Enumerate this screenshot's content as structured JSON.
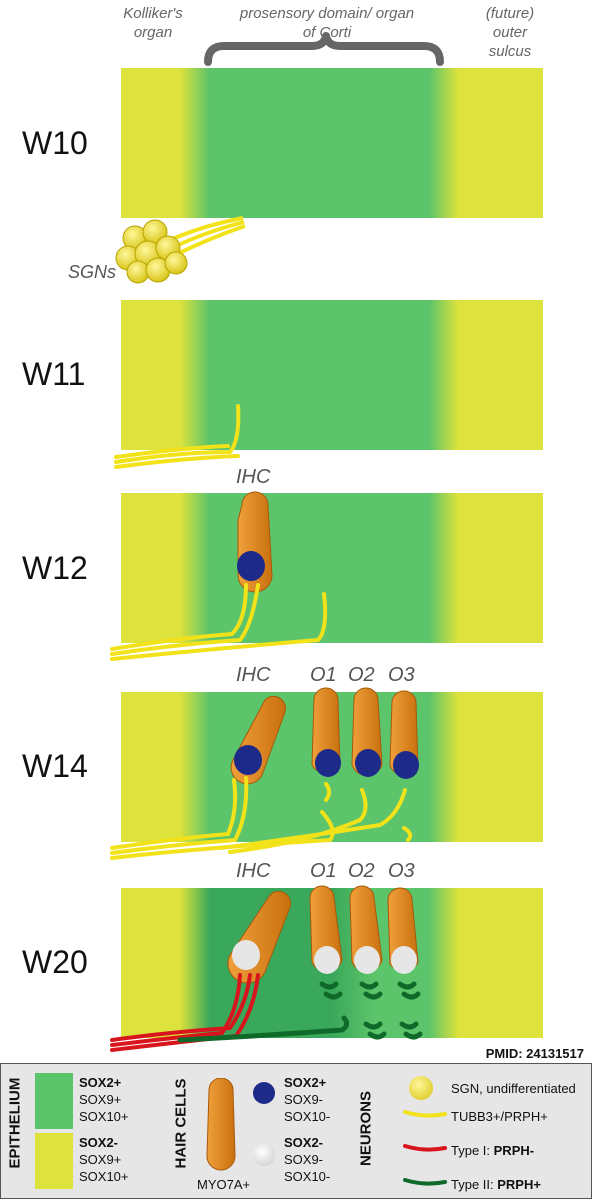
{
  "header": {
    "kolliker": "Kolliker's organ",
    "prosensory": "prosensory domain/ organ of Corti",
    "outer_sulcus": "(future) outer sulcus"
  },
  "weeks": [
    "W10",
    "W11",
    "W12",
    "W14",
    "W20"
  ],
  "labels": {
    "sgns": "SGNs",
    "ihc": "IHC",
    "o1": "O1",
    "o2": "O2",
    "o3": "O3"
  },
  "pmid": "PMID: 24131517",
  "legend": {
    "epithelium_title": "EPITHELIUM",
    "hair_cells_title": "HAIR CELLS",
    "neurons_title": "NEURONS",
    "green_line1": "SOX2+",
    "green_line2": "SOX9+",
    "green_line3": "SOX10+",
    "yellow_line1": "SOX2-",
    "yellow_line2": "SOX9+",
    "yellow_line3": "SOX10+",
    "myo": "MYO7A+",
    "blue_line1": "SOX2+",
    "blue_line2": "SOX9-",
    "blue_line3": "SOX10-",
    "white_line1": "SOX2-",
    "white_line2": "SOX9-",
    "white_line3": "SOX10-",
    "sgn": "SGN, undifferentiated",
    "tubb": "TUBB3+/PRPH+",
    "type1_prefix": "Type I: ",
    "type1_bold": "PRPH-",
    "type2_prefix": "Type II: ",
    "type2_bold": "PRPH+"
  },
  "colors": {
    "yellow": "#dde23c",
    "green": "#5cc46a",
    "dark_green": "#2e9a54",
    "hair_cell": "#e08a1f",
    "nucleus_blue": "#1e2a8a",
    "nucleus_white": "#e6e6e6",
    "neuron_yellow": "#f2e21a",
    "neuron_red": "#d8141c",
    "neuron_green": "#0f6a2a"
  }
}
